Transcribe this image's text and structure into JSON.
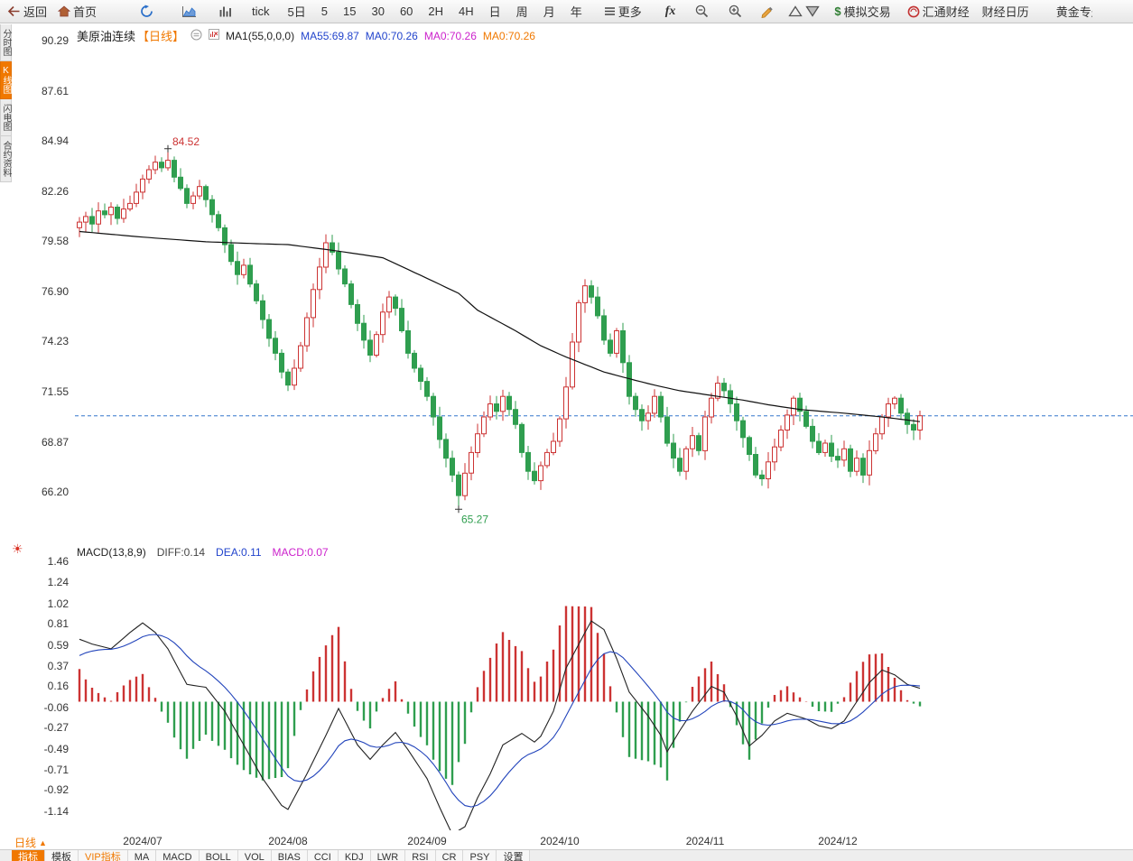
{
  "toolbar": {
    "items": [
      {
        "key": "back",
        "label": "返回",
        "icon": "back-arrow-icon"
      },
      {
        "key": "home",
        "label": "首页",
        "icon": "home-icon"
      },
      {
        "key": "refresh",
        "icon": "refresh-icon"
      },
      {
        "key": "chart-style",
        "icon": "area-chart-icon"
      },
      {
        "key": "volume-style",
        "icon": "volume-bars-icon"
      },
      {
        "key": "interval-tick",
        "label": "tick"
      },
      {
        "key": "interval-5d",
        "label": "5日"
      },
      {
        "key": "interval-5",
        "label": "5"
      },
      {
        "key": "interval-15",
        "label": "15"
      },
      {
        "key": "interval-30",
        "label": "30"
      },
      {
        "key": "interval-60",
        "label": "60"
      },
      {
        "key": "interval-2h",
        "label": "2H"
      },
      {
        "key": "interval-4h",
        "label": "4H"
      },
      {
        "key": "interval-day",
        "label": "日"
      },
      {
        "key": "interval-week",
        "label": "周"
      },
      {
        "key": "interval-month",
        "label": "月"
      },
      {
        "key": "interval-year",
        "label": "年"
      },
      {
        "key": "more",
        "label": "更多",
        "icon": "menu-icon"
      },
      {
        "key": "formula",
        "label": "fx"
      },
      {
        "key": "zoom-out",
        "icon": "zoom-out-icon"
      },
      {
        "key": "zoom-in",
        "icon": "zoom-in-icon"
      },
      {
        "key": "draw",
        "icon": "pencil-icon"
      },
      {
        "key": "overlay-up",
        "icon": "triangle-up-icon"
      },
      {
        "key": "overlay-down",
        "icon": "triangle-down-icon"
      },
      {
        "key": "sim-trade",
        "label": "模拟交易",
        "icon": "dollar-icon"
      },
      {
        "key": "huitong-finance",
        "label": "汇通财经",
        "icon": "logo-icon"
      },
      {
        "key": "econ-calendar",
        "label": "财经日历"
      },
      {
        "key": "gold",
        "label": "黄金专题"
      }
    ]
  },
  "sidebar": {
    "tabs": [
      {
        "label": "分时图",
        "active": false
      },
      {
        "label": "K线图",
        "active": true
      },
      {
        "label": "闪电图",
        "active": false
      },
      {
        "label": "合约资料",
        "active": false
      }
    ]
  },
  "chart": {
    "legend": {
      "symbol": "美原油连续",
      "period": "【日线】",
      "ma_group": "MA1(55,0,0,0)",
      "ma55": "MA55:69.87",
      "ma0_values": [
        "MA0:70.26",
        "MA0:70.26",
        "MA0:70.26"
      ]
    }
  },
  "macd": {
    "legend": {
      "title": "MACD(13,8,9)",
      "diff": "DIFF:0.14",
      "dea": "DEA:0.11",
      "macd": "MACD:0.07"
    }
  },
  "period_selector": {
    "label": "日线"
  },
  "bottom_bar": {
    "items": [
      {
        "key": "indicators",
        "label": "指标",
        "style": "active"
      },
      {
        "key": "templates",
        "label": "模板"
      },
      {
        "key": "vip",
        "label": "VIP指标",
        "style": "vip"
      },
      {
        "key": "ma",
        "label": "MA"
      },
      {
        "key": "macd",
        "label": "MACD"
      },
      {
        "key": "boll",
        "label": "BOLL"
      },
      {
        "key": "vol",
        "label": "VOL"
      },
      {
        "key": "bias",
        "label": "BIAS"
      },
      {
        "key": "cci",
        "label": "CCI"
      },
      {
        "key": "kdj",
        "label": "KDJ"
      },
      {
        "key": "lwr",
        "label": "LWR"
      },
      {
        "key": "rst",
        "label": "RSI"
      },
      {
        "key": "cr",
        "label": "CR"
      },
      {
        "key": "psy",
        "label": "PSY"
      },
      {
        "key": "settings",
        "label": "设置"
      }
    ]
  },
  "colors": {
    "up": "#cc3333",
    "down": "#2f9e4f",
    "ma55": "#111111",
    "diff": "#222222",
    "dea": "#2244bb",
    "macd_value": "#cc22cc",
    "accent": "#f07800",
    "dashed_line": "#3377cc",
    "axis_text": "#333333"
  },
  "chart_data": {
    "type": "candlestick",
    "symbol": "美原油连续",
    "interval": "日线",
    "start_date": "2024-06-17",
    "date_rule": "consecutive weekdays",
    "first_open": 80.3,
    "closes": [
      80.6,
      80.9,
      80.5,
      81.2,
      81,
      81.4,
      80.8,
      81.3,
      81.6,
      82.2,
      82.9,
      83.4,
      83.8,
      83.5,
      83.9,
      83,
      82.4,
      81.6,
      82,
      82.5,
      81.8,
      81,
      80.3,
      79.4,
      78.5,
      77.8,
      78.3,
      77.3,
      76.4,
      75.4,
      74.4,
      73.6,
      72.6,
      71.9,
      72.8,
      74,
      75.5,
      77,
      78.2,
      79.5,
      79,
      78.1,
      77.3,
      76.2,
      75.2,
      74.3,
      73.5,
      74.6,
      75.8,
      76.6,
      76,
      74.8,
      73.6,
      72.8,
      72.1,
      71.3,
      70.2,
      69,
      68,
      67.1,
      66,
      67.2,
      68.3,
      69.3,
      70.2,
      70.9,
      70.5,
      71.3,
      70.6,
      69.8,
      68.3,
      67.3,
      66.8,
      67.6,
      68.3,
      68.9,
      70.1,
      71.8,
      74.2,
      76.3,
      77.2,
      76.6,
      75.6,
      74.3,
      73.6,
      74.8,
      73.1,
      71.3,
      70.6,
      70,
      70.4,
      71.3,
      70.2,
      68.8,
      68,
      67.3,
      68.5,
      69.2,
      68.4,
      70.2,
      71.2,
      72,
      71.6,
      70.9,
      70,
      69.1,
      68.2,
      67.1,
      66.9,
      67.8,
      68.6,
      69.5,
      70.3,
      71.2,
      70.5,
      69.7,
      68.9,
      68.3,
      68.8,
      68.1,
      67.9,
      68.5,
      67.3,
      68,
      67.1,
      68.4,
      69.3,
      70.2,
      70.9,
      71.2,
      70.4,
      69.8,
      69.5,
      70.26
    ],
    "high_marker": {
      "index": 14,
      "value": 84.52
    },
    "low_marker": {
      "index": 60,
      "value": 65.27
    },
    "last_price": 70.26,
    "price_axis_ticks": [
      90.29,
      87.61,
      84.94,
      82.26,
      79.58,
      76.9,
      74.23,
      71.55,
      68.87,
      66.2
    ],
    "ma55_points": [
      [
        0,
        80.1
      ],
      [
        10,
        79.8
      ],
      [
        20,
        79.55
      ],
      [
        28,
        79.45
      ],
      [
        33,
        79.4
      ],
      [
        40,
        79.1
      ],
      [
        48,
        78.7
      ],
      [
        55,
        77.6
      ],
      [
        60,
        76.8
      ],
      [
        63,
        75.9
      ],
      [
        69,
        74.8
      ],
      [
        73,
        74
      ],
      [
        77,
        73.4
      ],
      [
        83,
        72.6
      ],
      [
        88,
        72.15
      ],
      [
        91,
        71.9
      ],
      [
        95,
        71.6
      ],
      [
        100,
        71.35
      ],
      [
        105,
        71.1
      ],
      [
        109,
        70.85
      ],
      [
        114,
        70.6
      ],
      [
        121,
        70.4
      ],
      [
        127,
        70.2
      ],
      [
        133,
        69.95
      ]
    ],
    "macd": {
      "params": [
        13,
        8,
        9
      ],
      "diff_points": [
        [
          0,
          0.65
        ],
        [
          2,
          0.6
        ],
        [
          5,
          0.55
        ],
        [
          8,
          0.72
        ],
        [
          10,
          0.82
        ],
        [
          12,
          0.72
        ],
        [
          14,
          0.55
        ],
        [
          17,
          0.18
        ],
        [
          20,
          0.15
        ],
        [
          23,
          -0.1
        ],
        [
          26,
          -0.45
        ],
        [
          29,
          -0.8
        ],
        [
          32,
          -1.08
        ],
        [
          33,
          -1.12
        ],
        [
          36,
          -0.75
        ],
        [
          39,
          -0.35
        ],
        [
          41,
          -0.07
        ],
        [
          44,
          -0.45
        ],
        [
          46,
          -0.6
        ],
        [
          48,
          -0.45
        ],
        [
          50,
          -0.32
        ],
        [
          52,
          -0.5
        ],
        [
          55,
          -0.8
        ],
        [
          57,
          -1.1
        ],
        [
          59,
          -1.38
        ],
        [
          61,
          -1.3
        ],
        [
          63,
          -1
        ],
        [
          65,
          -0.75
        ],
        [
          67,
          -0.45
        ],
        [
          70,
          -0.33
        ],
        [
          72,
          -0.42
        ],
        [
          73,
          -0.36
        ],
        [
          75,
          -0.1
        ],
        [
          77,
          0.35
        ],
        [
          80,
          0.72
        ],
        [
          81,
          0.84
        ],
        [
          83,
          0.75
        ],
        [
          85,
          0.45
        ],
        [
          87,
          0.1
        ],
        [
          90,
          -0.15
        ],
        [
          92,
          -0.35
        ],
        [
          93,
          -0.52
        ],
        [
          95,
          -0.3
        ],
        [
          97,
          -0.1
        ],
        [
          100,
          0.16
        ],
        [
          102,
          0.1
        ],
        [
          104,
          -0.15
        ],
        [
          106,
          -0.46
        ],
        [
          108,
          -0.35
        ],
        [
          110,
          -0.2
        ],
        [
          112,
          -0.12
        ],
        [
          115,
          -0.18
        ],
        [
          117,
          -0.25
        ],
        [
          119,
          -0.28
        ],
        [
          121,
          -0.2
        ],
        [
          123,
          0
        ],
        [
          125,
          0.2
        ],
        [
          127,
          0.33
        ],
        [
          129,
          0.28
        ],
        [
          131,
          0.18
        ],
        [
          133,
          0.14
        ]
      ],
      "dea_seed": 0.48,
      "dea_rule": "EMA9 of DIFF",
      "hist_rule": "2*(DIFF-DEA)",
      "axis_ticks": [
        1.46,
        1.24,
        1.02,
        0.81,
        0.59,
        0.37,
        0.16,
        -0.06,
        -0.27,
        -0.49,
        -0.71,
        -0.92,
        -1.14
      ]
    },
    "x_labels": [
      {
        "text": "2024/07",
        "index": 10
      },
      {
        "text": "2024/08",
        "index": 33
      },
      {
        "text": "2024/09",
        "index": 55
      },
      {
        "text": "2024/10",
        "index": 76
      },
      {
        "text": "2024/11",
        "index": 99
      },
      {
        "text": "2024/12",
        "index": 120
      }
    ]
  }
}
